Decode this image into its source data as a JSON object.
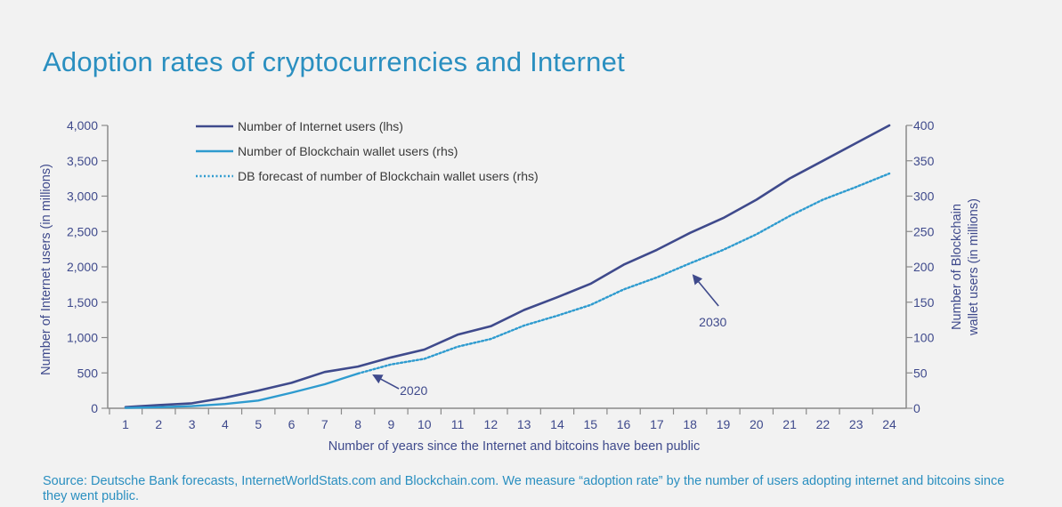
{
  "title": "Adoption rates of cryptocurrencies and Internet",
  "source": "Source: Deutsche Bank forecasts, InternetWorldStats.com and Blockchain.com. We measure “adoption rate” by the number of users adopting internet and bitcoins since they went public.",
  "colors": {
    "internet": "#3f4a8c",
    "blockchain": "#2e9bcf",
    "forecast": "#2e9bcf",
    "axis": "#8a8a8a",
    "axis_text": "#3f4a8c",
    "title": "#2a8fc0"
  },
  "chart_data": {
    "type": "line",
    "title": "Adoption rates of cryptocurrencies and Internet",
    "xlabel": "Number of years since the Internet and bitcoins have been public",
    "ylabel_left": "Number of Internet users (in millions)",
    "ylabel_right_line1": "Number of Blockchain",
    "ylabel_right_line2": "wallet users (in millions)",
    "x": [
      1,
      2,
      3,
      4,
      5,
      6,
      7,
      8,
      9,
      10,
      11,
      12,
      13,
      14,
      15,
      16,
      17,
      18,
      19,
      20,
      21,
      22,
      23,
      24
    ],
    "xlim": [
      1,
      24
    ],
    "ylim_left": [
      0,
      4000
    ],
    "ylim_right": [
      0,
      400
    ],
    "left_ticks": [
      "0",
      "500",
      "1,000",
      "1,500",
      "2,000",
      "2,500",
      "3,000",
      "3,500",
      "4,000"
    ],
    "right_ticks": [
      "0",
      "50",
      "100",
      "150",
      "200",
      "250",
      "300",
      "350",
      "400"
    ],
    "grid": false,
    "legend_position": "top-left",
    "series": [
      {
        "name": "Number of Internet users (lhs)",
        "axis": "left",
        "style": "solid",
        "x": [
          1,
          2,
          3,
          4,
          5,
          6,
          7,
          8,
          9,
          10,
          11,
          12,
          13,
          14,
          15,
          16,
          17,
          18,
          19,
          20,
          21,
          22,
          23,
          24
        ],
        "values": [
          16,
          45,
          70,
          150,
          250,
          360,
          513,
          590,
          720,
          830,
          1040,
          1160,
          1390,
          1570,
          1760,
          2030,
          2240,
          2480,
          2690,
          2950,
          3250,
          3500,
          3750,
          4000
        ]
      },
      {
        "name": "Number of Blockchain wallet users (rhs)",
        "axis": "right",
        "style": "solid",
        "x": [
          1,
          2,
          3,
          4,
          5,
          6,
          7,
          8
        ],
        "values": [
          0.5,
          1.5,
          3,
          6,
          11,
          22,
          34,
          49
        ]
      },
      {
        "name": "DB forecast of number of Blockchain wallet users (rhs)",
        "axis": "right",
        "style": "dotted",
        "x": [
          8,
          9,
          10,
          11,
          12,
          13,
          14,
          15,
          16,
          17,
          18,
          19,
          20,
          21,
          22,
          23,
          24
        ],
        "values": [
          49,
          62,
          70,
          87,
          98,
          117,
          131,
          146,
          168,
          185,
          205,
          224,
          246,
          272,
          295,
          313,
          332
        ]
      }
    ],
    "annotations": [
      {
        "text": "2020",
        "x": 8,
        "axis": "right",
        "y": 49
      },
      {
        "text": "2030",
        "x": 18,
        "axis": "right",
        "y": 195
      }
    ]
  }
}
